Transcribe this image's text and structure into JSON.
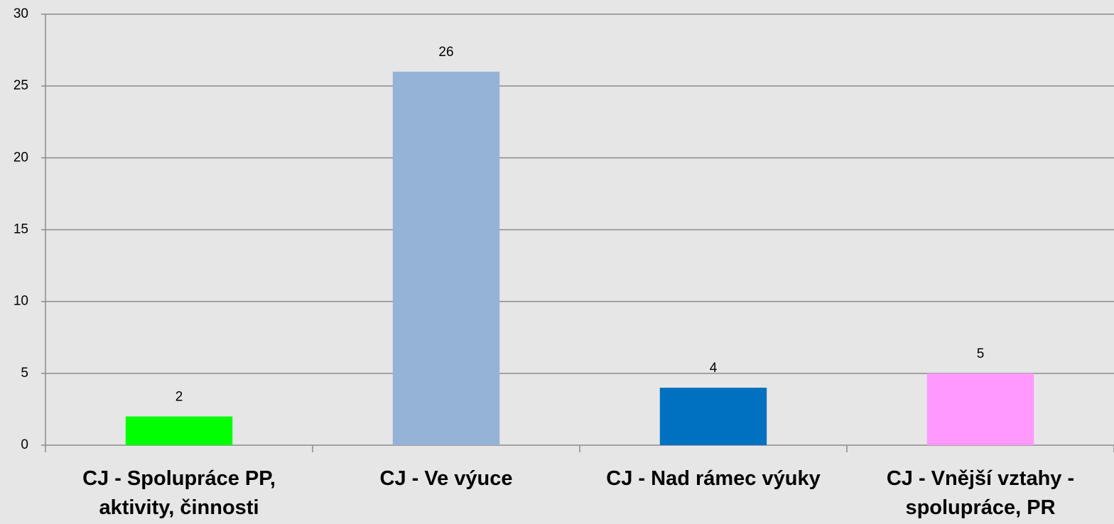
{
  "chart_data": {
    "type": "bar",
    "categories": [
      "CJ - Spolupráce PP, aktivity, činnosti",
      "CJ - Ve výuce",
      "CJ - Nad rámec výuky",
      "CJ - Vnější vztahy - spolupráce, PR"
    ],
    "values": [
      2,
      26,
      4,
      5
    ],
    "colors": [
      "#00ff00",
      "#95b3d7",
      "#0070c0",
      "#ff99ff"
    ],
    "ylim": [
      0,
      30
    ],
    "yticks": [
      0,
      5,
      10,
      15,
      20,
      25,
      30
    ],
    "grid": true
  }
}
